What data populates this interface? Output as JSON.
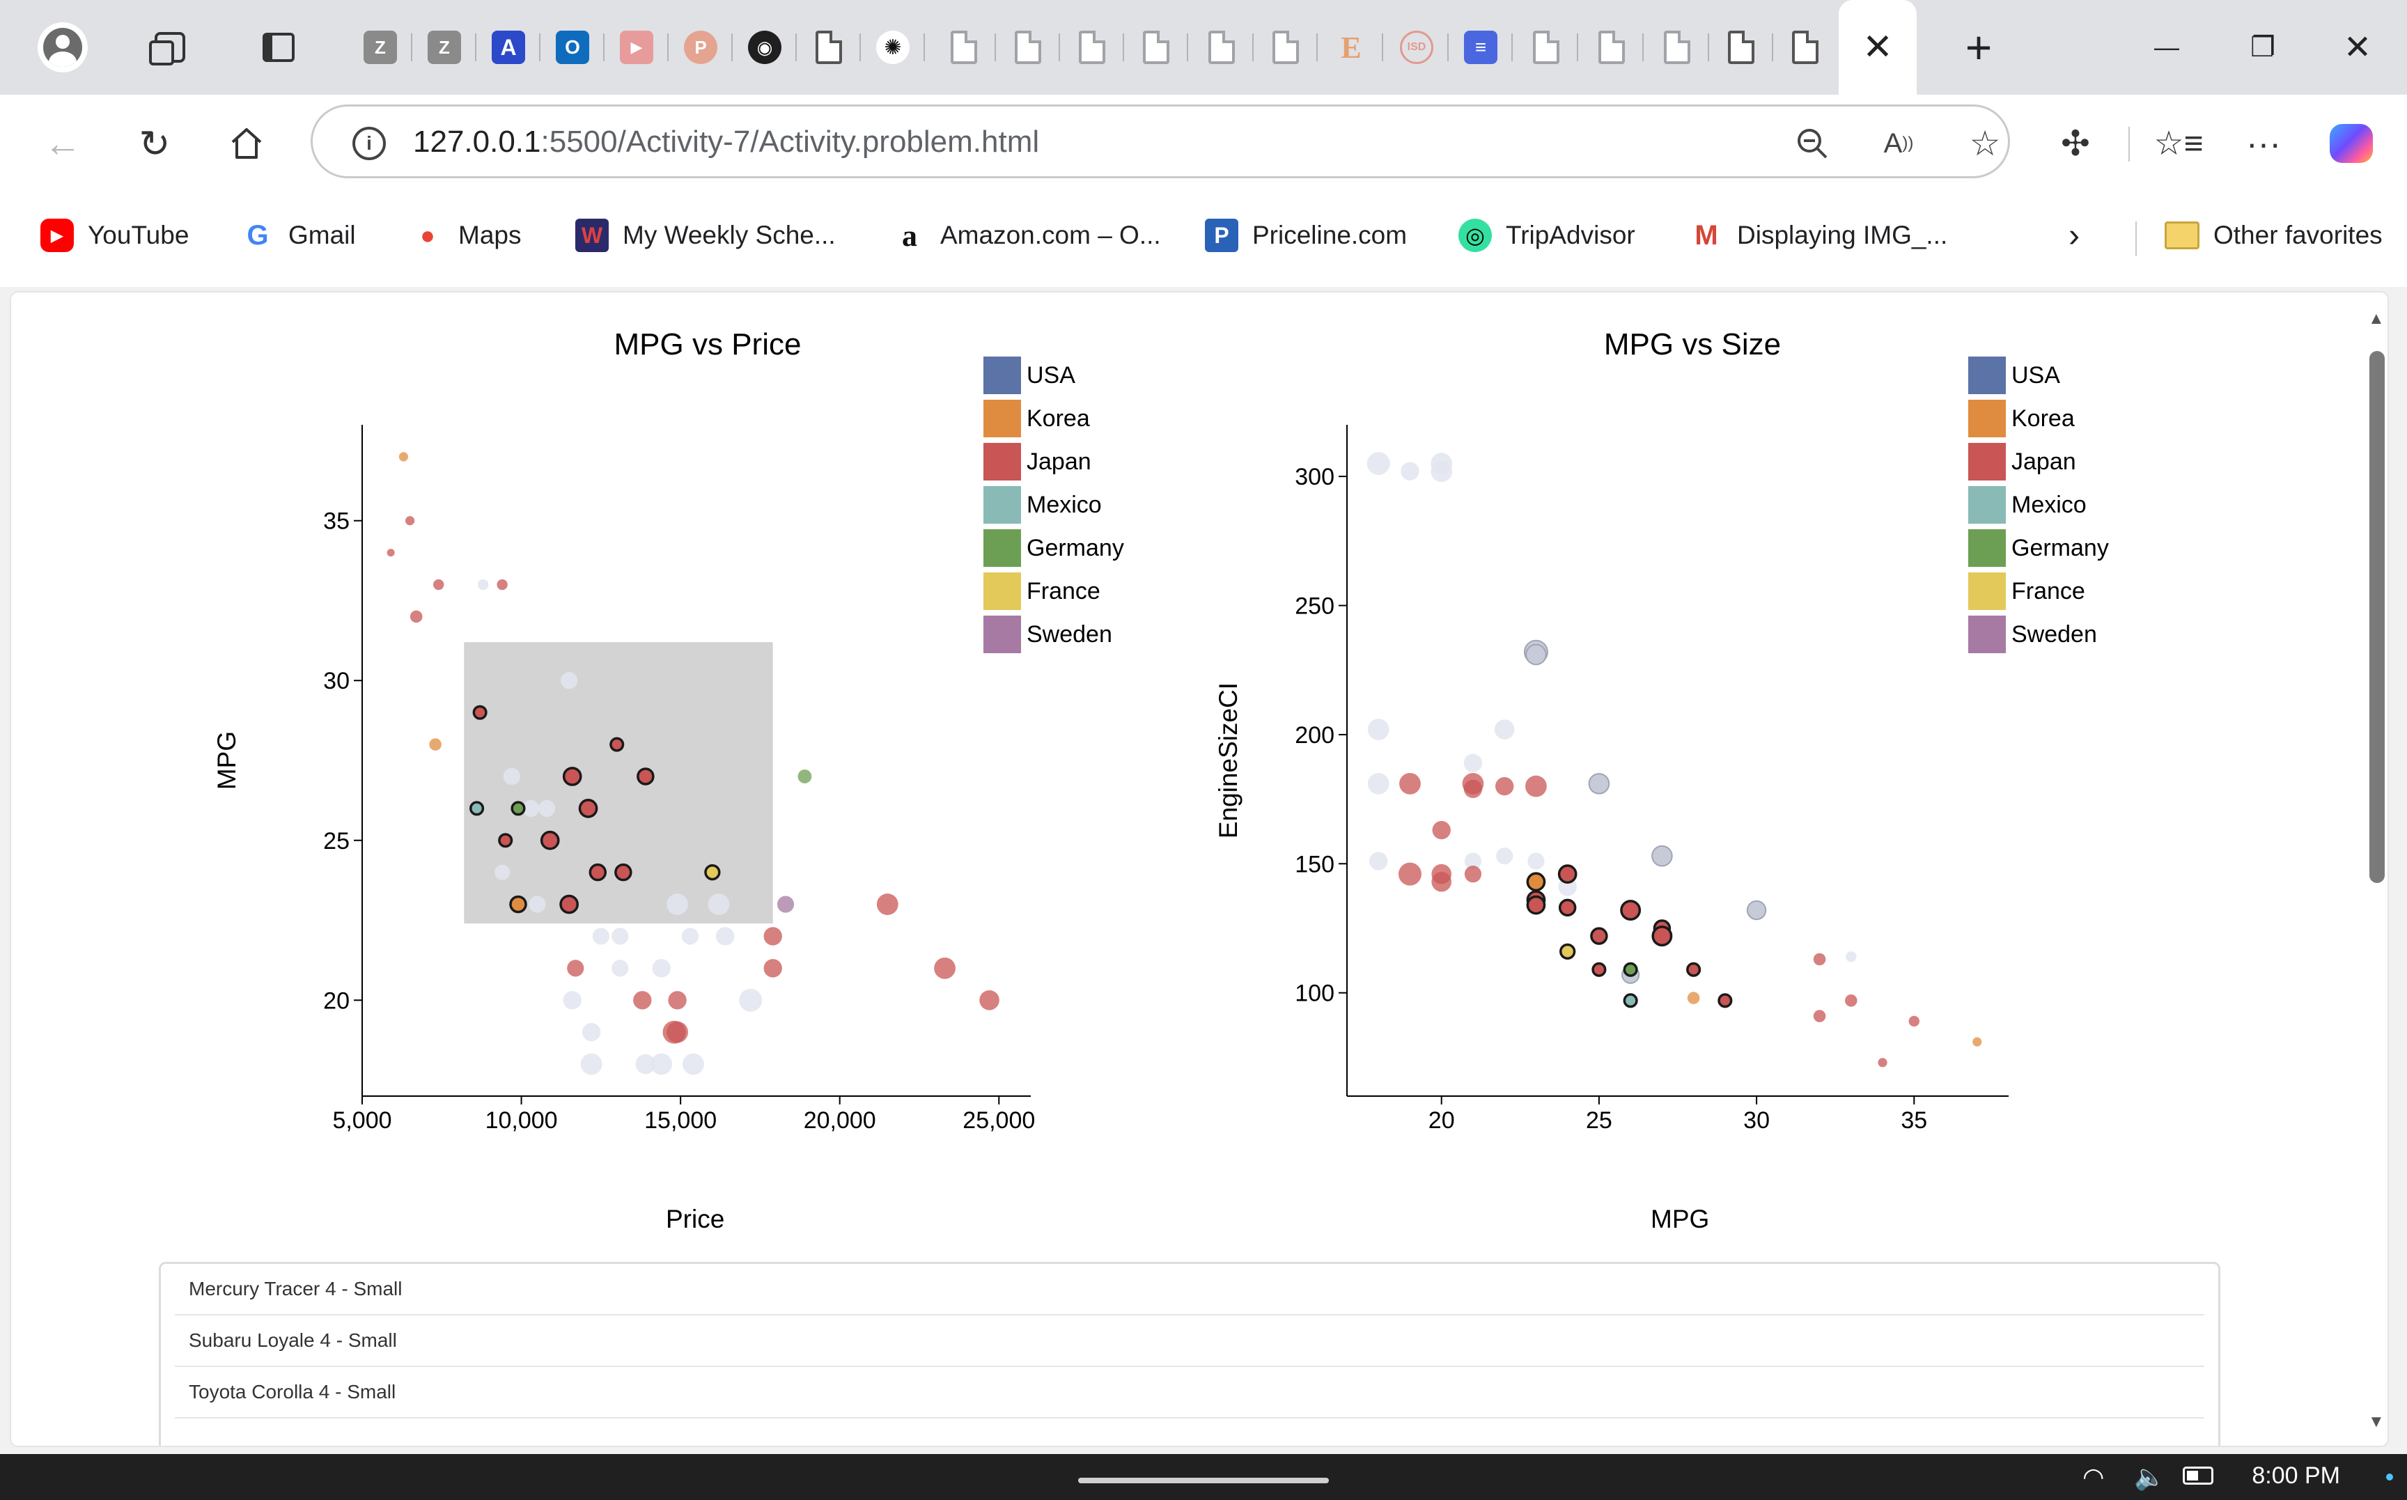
{
  "browser": {
    "close_tab_glyph": "✕",
    "new_tab_glyph": "+",
    "minimize_glyph": "—",
    "restore_glyph": "❐",
    "close_window_glyph": "✕",
    "url_host": "127.0.0.1",
    "url_path": ":5500/Activity-7/Activity.problem.html"
  },
  "favorites": [
    {
      "label": "YouTube",
      "color": "#ff0000",
      "glyph": "▶",
      "icon": "youtube-icon"
    },
    {
      "label": "Gmail",
      "color": "#ffffff",
      "glyph": "G",
      "icon": "gmail-icon"
    },
    {
      "label": "Maps",
      "color": "#ffffff",
      "glyph": "📍",
      "icon": "maps-icon"
    },
    {
      "label": "My Weekly Sche...",
      "color": "#2a2a6a",
      "glyph": "W",
      "icon": "schedule-icon"
    },
    {
      "label": "Amazon.com – O...",
      "color": "#ffffff",
      "glyph": "a",
      "icon": "amazon-icon"
    },
    {
      "label": "Priceline.com",
      "color": "#2a62b8",
      "glyph": "P",
      "icon": "priceline-icon"
    },
    {
      "label": "TripAdvisor",
      "color": "#34e0a1",
      "glyph": "◎",
      "icon": "tripadvisor-icon"
    },
    {
      "label": "Displaying IMG_...",
      "color": "#ffffff",
      "glyph": "M",
      "icon": "gmail-m-icon"
    }
  ],
  "other_favorites": "Other favorites",
  "charts": {
    "left": {
      "title": "MPG vs Price",
      "xlabel": "Price",
      "ylabel": "MPG"
    },
    "right": {
      "title": "MPG vs Size",
      "xlabel": "MPG",
      "ylabel": "EngineSizeCI"
    }
  },
  "legend": [
    {
      "name": "USA",
      "color": "#5b73a6"
    },
    {
      "name": "Korea",
      "color": "#e08c40"
    },
    {
      "name": "Japan",
      "color": "#c95555"
    },
    {
      "name": "Mexico",
      "color": "#89bab6"
    },
    {
      "name": "Germany",
      "color": "#6c9f54"
    },
    {
      "name": "France",
      "color": "#e3c95a"
    },
    {
      "name": "Sweden",
      "color": "#a67aa2"
    }
  ],
  "chart_data": [
    {
      "type": "scatter",
      "title": "MPG vs Price",
      "xlabel": "Price",
      "ylabel": "MPG",
      "xlim": [
        5000,
        26000
      ],
      "ylim": [
        17,
        38
      ],
      "xticks": [
        "5,000",
        "10,000",
        "15,000",
        "20,000",
        "25,000"
      ],
      "yticks": [
        "20",
        "25",
        "30",
        "35"
      ],
      "legend": "top-right",
      "brush": {
        "x0": 8200,
        "x1": 17900,
        "y0": 22.4,
        "y1": 31.2
      },
      "points": [
        {
          "x": 6300,
          "y": 37,
          "c": "Korea",
          "s": 6,
          "st": "f"
        },
        {
          "x": 6500,
          "y": 35,
          "c": "Japan",
          "s": 6,
          "st": "f"
        },
        {
          "x": 5900,
          "y": 34,
          "c": "Japan",
          "s": 5,
          "st": "f"
        },
        {
          "x": 7400,
          "y": 33,
          "c": "Japan",
          "s": 7,
          "st": "f"
        },
        {
          "x": 8800,
          "y": 33,
          "c": "USA",
          "s": 7,
          "st": "g"
        },
        {
          "x": 9400,
          "y": 33,
          "c": "Japan",
          "s": 7,
          "st": "f"
        },
        {
          "x": 6700,
          "y": 32,
          "c": "Japan",
          "s": 8,
          "st": "f"
        },
        {
          "x": 11500,
          "y": 30,
          "c": "USA",
          "s": 11,
          "st": "g"
        },
        {
          "x": 8700,
          "y": 29,
          "c": "Japan",
          "s": 8,
          "st": "s"
        },
        {
          "x": 7300,
          "y": 28,
          "c": "Korea",
          "s": 8,
          "st": "f"
        },
        {
          "x": 13000,
          "y": 28,
          "c": "Japan",
          "s": 8,
          "st": "s"
        },
        {
          "x": 9700,
          "y": 27,
          "c": "USA",
          "s": 11,
          "st": "g"
        },
        {
          "x": 11600,
          "y": 27,
          "c": "Japan",
          "s": 11,
          "st": "s"
        },
        {
          "x": 13900,
          "y": 27,
          "c": "Japan",
          "s": 10,
          "st": "s"
        },
        {
          "x": 18900,
          "y": 27,
          "c": "Germany",
          "s": 9,
          "st": "f"
        },
        {
          "x": 8600,
          "y": 26,
          "c": "Mexico",
          "s": 8,
          "st": "s"
        },
        {
          "x": 9900,
          "y": 26,
          "c": "Germany",
          "s": 8,
          "st": "s"
        },
        {
          "x": 10300,
          "y": 26,
          "c": "USA",
          "s": 11,
          "st": "g"
        },
        {
          "x": 10800,
          "y": 26,
          "c": "USA",
          "s": 11,
          "st": "g"
        },
        {
          "x": 12100,
          "y": 26,
          "c": "Japan",
          "s": 11,
          "st": "s"
        },
        {
          "x": 9500,
          "y": 25,
          "c": "Japan",
          "s": 8,
          "st": "s"
        },
        {
          "x": 10900,
          "y": 25,
          "c": "Japan",
          "s": 11,
          "st": "s"
        },
        {
          "x": 9400,
          "y": 24,
          "c": "USA",
          "s": 10,
          "st": "g"
        },
        {
          "x": 12400,
          "y": 24,
          "c": "Japan",
          "s": 10,
          "st": "s"
        },
        {
          "x": 13200,
          "y": 24,
          "c": "Japan",
          "s": 10,
          "st": "s"
        },
        {
          "x": 16000,
          "y": 24,
          "c": "France",
          "s": 9,
          "st": "s"
        },
        {
          "x": 9900,
          "y": 23,
          "c": "Korea",
          "s": 10,
          "st": "s"
        },
        {
          "x": 10500,
          "y": 23,
          "c": "USA",
          "s": 11,
          "st": "g"
        },
        {
          "x": 11500,
          "y": 23,
          "c": "Japan",
          "s": 11,
          "st": "s"
        },
        {
          "x": 14900,
          "y": 23,
          "c": "USA",
          "s": 14,
          "st": "g"
        },
        {
          "x": 16200,
          "y": 23,
          "c": "USA",
          "s": 14,
          "st": "g"
        },
        {
          "x": 18300,
          "y": 23,
          "c": "Sweden",
          "s": 11,
          "st": "f"
        },
        {
          "x": 21500,
          "y": 23,
          "c": "Japan",
          "s": 14,
          "st": "f"
        },
        {
          "x": 12500,
          "y": 22,
          "c": "USA",
          "s": 11,
          "st": "g"
        },
        {
          "x": 13100,
          "y": 22,
          "c": "USA",
          "s": 11,
          "st": "g"
        },
        {
          "x": 15300,
          "y": 22,
          "c": "USA",
          "s": 11,
          "st": "g"
        },
        {
          "x": 16400,
          "y": 22,
          "c": "USA",
          "s": 12,
          "st": "g"
        },
        {
          "x": 17900,
          "y": 22,
          "c": "Japan",
          "s": 12,
          "st": "f"
        },
        {
          "x": 11700,
          "y": 21,
          "c": "Japan",
          "s": 11,
          "st": "f"
        },
        {
          "x": 13100,
          "y": 21,
          "c": "USA",
          "s": 11,
          "st": "g"
        },
        {
          "x": 14400,
          "y": 21,
          "c": "USA",
          "s": 12,
          "st": "g"
        },
        {
          "x": 17900,
          "y": 21,
          "c": "Japan",
          "s": 12,
          "st": "f"
        },
        {
          "x": 23300,
          "y": 21,
          "c": "Japan",
          "s": 14,
          "st": "f"
        },
        {
          "x": 11600,
          "y": 20,
          "c": "USA",
          "s": 12,
          "st": "g"
        },
        {
          "x": 13800,
          "y": 20,
          "c": "Japan",
          "s": 12,
          "st": "f"
        },
        {
          "x": 14900,
          "y": 20,
          "c": "Japan",
          "s": 12,
          "st": "f"
        },
        {
          "x": 17200,
          "y": 20,
          "c": "USA",
          "s": 15,
          "st": "g"
        },
        {
          "x": 24700,
          "y": 20,
          "c": "Japan",
          "s": 13,
          "st": "f"
        },
        {
          "x": 12200,
          "y": 19,
          "c": "USA",
          "s": 12,
          "st": "g"
        },
        {
          "x": 14800,
          "y": 19,
          "c": "Japan",
          "s": 15,
          "st": "f"
        },
        {
          "x": 14900,
          "y": 19,
          "c": "Japan",
          "s": 14,
          "st": "f"
        },
        {
          "x": 12200,
          "y": 18,
          "c": "USA",
          "s": 14,
          "st": "g"
        },
        {
          "x": 13900,
          "y": 18,
          "c": "USA",
          "s": 13,
          "st": "g"
        },
        {
          "x": 14400,
          "y": 18,
          "c": "USA",
          "s": 14,
          "st": "g"
        },
        {
          "x": 15400,
          "y": 18,
          "c": "USA",
          "s": 14,
          "st": "g"
        }
      ]
    },
    {
      "type": "scatter",
      "title": "MPG vs Size",
      "xlabel": "MPG",
      "ylabel": "EngineSizeCI",
      "xlim": [
        17,
        38
      ],
      "ylim": [
        60,
        320
      ],
      "xticks": [
        "20",
        "25",
        "30",
        "35"
      ],
      "yticks": [
        "100",
        "150",
        "200",
        "250",
        "300"
      ],
      "legend": "top-right",
      "points": [
        {
          "x": 18,
          "y": 305,
          "c": "USA",
          "s": 15,
          "st": "g"
        },
        {
          "x": 19,
          "y": 302,
          "c": "USA",
          "s": 12,
          "st": "g"
        },
        {
          "x": 20,
          "y": 305,
          "c": "USA",
          "s": 14,
          "st": "g"
        },
        {
          "x": 20,
          "y": 302,
          "c": "USA",
          "s": 14,
          "st": "g"
        },
        {
          "x": 23,
          "y": 232,
          "c": "USA",
          "s": 15,
          "st": "g2"
        },
        {
          "x": 23,
          "y": 231,
          "c": "USA",
          "s": 13,
          "st": "g2"
        },
        {
          "x": 18,
          "y": 202,
          "c": "USA",
          "s": 14,
          "st": "g"
        },
        {
          "x": 22,
          "y": 202,
          "c": "USA",
          "s": 13,
          "st": "g"
        },
        {
          "x": 21,
          "y": 189,
          "c": "USA",
          "s": 12,
          "st": "g"
        },
        {
          "x": 18,
          "y": 181,
          "c": "USA",
          "s": 14,
          "st": "g"
        },
        {
          "x": 19,
          "y": 181,
          "c": "Japan",
          "s": 14,
          "st": "f"
        },
        {
          "x": 21,
          "y": 181,
          "c": "Japan",
          "s": 14,
          "st": "f"
        },
        {
          "x": 21,
          "y": 179,
          "c": "Japan",
          "s": 12,
          "st": "f"
        },
        {
          "x": 22,
          "y": 180,
          "c": "Japan",
          "s": 12,
          "st": "f"
        },
        {
          "x": 23,
          "y": 180,
          "c": "Japan",
          "s": 14,
          "st": "f"
        },
        {
          "x": 25,
          "y": 181,
          "c": "USA",
          "s": 13,
          "st": "g2"
        },
        {
          "x": 20,
          "y": 163,
          "c": "Japan",
          "s": 12,
          "st": "f"
        },
        {
          "x": 18,
          "y": 151,
          "c": "USA",
          "s": 12,
          "st": "g"
        },
        {
          "x": 21,
          "y": 151,
          "c": "USA",
          "s": 11,
          "st": "g"
        },
        {
          "x": 22,
          "y": 153,
          "c": "USA",
          "s": 11,
          "st": "g"
        },
        {
          "x": 23,
          "y": 151,
          "c": "USA",
          "s": 11,
          "st": "g"
        },
        {
          "x": 27,
          "y": 153,
          "c": "USA",
          "s": 13,
          "st": "g2"
        },
        {
          "x": 19,
          "y": 146,
          "c": "Japan",
          "s": 15,
          "st": "f"
        },
        {
          "x": 20,
          "y": 146,
          "c": "Japan",
          "s": 13,
          "st": "f"
        },
        {
          "x": 20,
          "y": 143,
          "c": "Japan",
          "s": 13,
          "st": "f"
        },
        {
          "x": 21,
          "y": 146,
          "c": "Japan",
          "s": 11,
          "st": "f"
        },
        {
          "x": 23,
          "y": 143,
          "c": "Korea",
          "s": 11,
          "st": "s"
        },
        {
          "x": 24,
          "y": 146,
          "c": "Japan",
          "s": 11,
          "st": "s"
        },
        {
          "x": 24,
          "y": 141,
          "c": "USA",
          "s": 12,
          "st": "g"
        },
        {
          "x": 23,
          "y": 136,
          "c": "Japan",
          "s": 11,
          "st": "s"
        },
        {
          "x": 23,
          "y": 134,
          "c": "Japan",
          "s": 11,
          "st": "s"
        },
        {
          "x": 24,
          "y": 133,
          "c": "Japan",
          "s": 10,
          "st": "s"
        },
        {
          "x": 26,
          "y": 132,
          "c": "Japan",
          "s": 12,
          "st": "s"
        },
        {
          "x": 30,
          "y": 132,
          "c": "USA",
          "s": 12,
          "st": "g2"
        },
        {
          "x": 27,
          "y": 125,
          "c": "Japan",
          "s": 10,
          "st": "s"
        },
        {
          "x": 27,
          "y": 122,
          "c": "Japan",
          "s": 12,
          "st": "s"
        },
        {
          "x": 25,
          "y": 122,
          "c": "Japan",
          "s": 10,
          "st": "s"
        },
        {
          "x": 24,
          "y": 116,
          "c": "France",
          "s": 9,
          "st": "s"
        },
        {
          "x": 32,
          "y": 113,
          "c": "Japan",
          "s": 8,
          "st": "f"
        },
        {
          "x": 33,
          "y": 114,
          "c": "USA",
          "s": 7,
          "st": "g"
        },
        {
          "x": 25,
          "y": 109,
          "c": "Japan",
          "s": 8,
          "st": "s"
        },
        {
          "x": 26,
          "y": 109,
          "c": "Germany",
          "s": 8,
          "st": "s"
        },
        {
          "x": 26,
          "y": 107,
          "c": "USA",
          "s": 11,
          "st": "g2"
        },
        {
          "x": 28,
          "y": 109,
          "c": "Japan",
          "s": 8,
          "st": "s"
        },
        {
          "x": 28,
          "y": 98,
          "c": "Korea",
          "s": 8,
          "st": "f"
        },
        {
          "x": 26,
          "y": 97,
          "c": "Mexico",
          "s": 8,
          "st": "s"
        },
        {
          "x": 29,
          "y": 97,
          "c": "Japan",
          "s": 8,
          "st": "s"
        },
        {
          "x": 33,
          "y": 97,
          "c": "Japan",
          "s": 8,
          "st": "f"
        },
        {
          "x": 32,
          "y": 91,
          "c": "Japan",
          "s": 8,
          "st": "f"
        },
        {
          "x": 35,
          "y": 89,
          "c": "Japan",
          "s": 7,
          "st": "f"
        },
        {
          "x": 37,
          "y": 81,
          "c": "Korea",
          "s": 6,
          "st": "f"
        },
        {
          "x": 34,
          "y": 73,
          "c": "Japan",
          "s": 6,
          "st": "f"
        }
      ]
    }
  ],
  "car_list": [
    "Mercury Tracer 4 - Small",
    "Subaru Loyale 4 - Small",
    "Toyota Corolla 4 - Small"
  ],
  "taskbar": {
    "time": "8:00 PM"
  }
}
